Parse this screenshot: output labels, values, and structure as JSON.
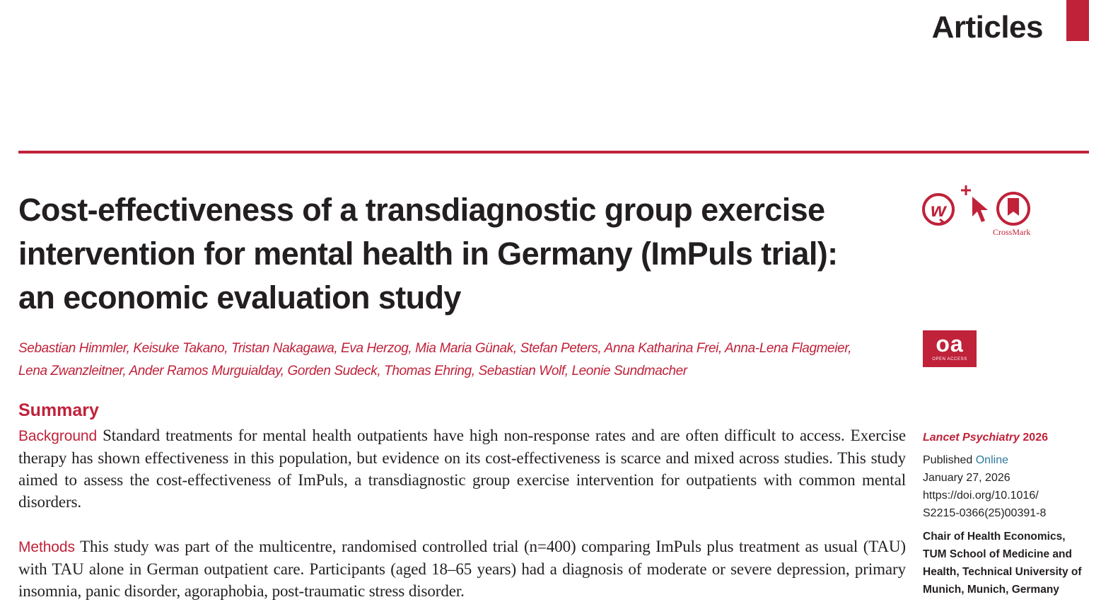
{
  "header": {
    "section_label": "Articles"
  },
  "article": {
    "title_lines": [
      "Cost-effectiveness of a transdiagnostic group exercise",
      "intervention for mental health in Germany (ImPuls trial):",
      "an economic evaluation study"
    ],
    "author_lines": [
      "Sebastian Himmler, Keisuke Takano, Tristan Nakagawa, Eva Herzog, Mia Maria Günak, Stefan Peters, Anna Katharina Frei, Anna-Lena Flagmeier,",
      "Lena Zwanzleitner, Ander Ramos Murguialday, Gorden Sudeck, Thomas Ehring, Sebastian Wolf, Leonie Sundmacher"
    ],
    "summary_heading": "Summary",
    "background_label": "Background",
    "background_text": "Standard treatments for mental health outpatients have high non-response rates and are often difficult to access. Exercise therapy has shown effectiveness in this population, but evidence on its cost-effectiveness is scarce and mixed across studies. This study aimed to assess the cost-effectiveness of ImPuls, a transdiagnostic group exercise intervention for outpatients with common mental disorders.",
    "methods_label": "Methods",
    "methods_text": "This study was part of the multicentre, randomised controlled trial (n=400) comparing ImPuls plus treatment as usual (TAU) with TAU alone in German outpatient care. Participants (aged 18–65 years) had a diagnosis of moderate or severe depression, primary insomnia, panic disorder, agoraphobia, post-traumatic stress disorder."
  },
  "badges": {
    "crossmark_label": "CrossMark",
    "oa_big": "oa",
    "oa_small": "OPEN ACCESS",
    "icons": [
      "wiley-online-icon",
      "click-cursor-icon",
      "crossmark-icon"
    ],
    "accent_color": "#c0223a"
  },
  "sidebar": {
    "journal": "Lancet Psychiatry",
    "year": "2026",
    "published_label": "Published",
    "online_label": "Online",
    "date": "January 27, 2026",
    "doi_line1": "https://doi.org/10.1016/",
    "doi_line2": "S2215-0366(25)00391-8",
    "affiliation_lines": [
      "Chair of Health Economics,",
      "TUM School of Medicine and",
      "Health, Technical University of",
      "Munich, Munich, Germany"
    ]
  }
}
